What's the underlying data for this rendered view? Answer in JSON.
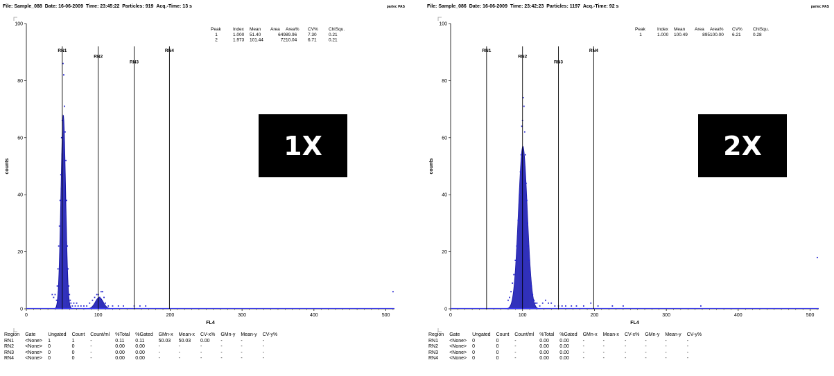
{
  "chart_data": [
    {
      "type": "histogram",
      "header": {
        "file": "File: Sample_088",
        "date": "Date: 16-06-2009",
        "time": "Time: 23:45:22",
        "particles": "Particles: 919",
        "acq_time": "Acq.-Time: 13 s",
        "brand": "partec PAS"
      },
      "badge": "1X",
      "xlabel": "FL4",
      "ylabel": "counts",
      "xlim": [
        0,
        512
      ],
      "ylim": [
        0,
        100
      ],
      "x_ticks": [
        0,
        100,
        200,
        300,
        400,
        500
      ],
      "y_ticks": [
        0,
        20,
        40,
        60,
        80,
        100
      ],
      "regions": [
        {
          "name": "RN1",
          "x": 50,
          "label_y": 90
        },
        {
          "name": "RN2",
          "x": 100,
          "label_y": 88
        },
        {
          "name": "RN3",
          "x": 150,
          "label_y": 86
        },
        {
          "name": "RN4",
          "x": 199,
          "label_y": 90
        }
      ],
      "peaks": [
        {
          "mean": 51.4,
          "height": 68,
          "sigma": 3.3
        },
        {
          "mean": 101.44,
          "height": 4,
          "sigma": 5.5
        }
      ],
      "scatter_points": [
        [
          36,
          5
        ],
        [
          38,
          4
        ],
        [
          40,
          5
        ],
        [
          42,
          3
        ],
        [
          43,
          8
        ],
        [
          44,
          14
        ],
        [
          45,
          22
        ],
        [
          46,
          29
        ],
        [
          47,
          38
        ],
        [
          48,
          47
        ],
        [
          49,
          60
        ],
        [
          50,
          66
        ],
        [
          51,
          86
        ],
        [
          52,
          82
        ],
        [
          53,
          71
        ],
        [
          54,
          62
        ],
        [
          55,
          52
        ],
        [
          56,
          38
        ],
        [
          57,
          22
        ],
        [
          58,
          14
        ],
        [
          59,
          8
        ],
        [
          60,
          5
        ],
        [
          61,
          3
        ],
        [
          62,
          2
        ],
        [
          64,
          1
        ],
        [
          66,
          2
        ],
        [
          68,
          1
        ],
        [
          70,
          2
        ],
        [
          72,
          1
        ],
        [
          76,
          1
        ],
        [
          80,
          1
        ],
        [
          84,
          1
        ],
        [
          88,
          2
        ],
        [
          92,
          3
        ],
        [
          95,
          4
        ],
        [
          98,
          5
        ],
        [
          100,
          5
        ],
        [
          102,
          4
        ],
        [
          104,
          6
        ],
        [
          106,
          6
        ],
        [
          108,
          4
        ],
        [
          110,
          2
        ],
        [
          114,
          1
        ],
        [
          120,
          1
        ],
        [
          128,
          1
        ],
        [
          135,
          1
        ],
        [
          150,
          1
        ],
        [
          158,
          1
        ],
        [
          166,
          1
        ],
        [
          510,
          6
        ]
      ],
      "stats_table": {
        "headers": [
          "Peak",
          "Index",
          "Mean",
          "Area",
          "Area%",
          "CV%",
          "ChiSqu."
        ],
        "rows": [
          [
            "1",
            "1.000",
            "51.40",
            "649",
            "89.96",
            "7.30",
            "0.21"
          ],
          [
            "2",
            "1.973",
            "101.44",
            "72",
            "10.04",
            "6.71",
            "0.21"
          ]
        ]
      },
      "region_table": {
        "headers": [
          "Region",
          "Gate",
          "Ungated",
          "Count",
          "Count/ml",
          "%Total",
          "%Gated",
          "GMn-x",
          "Mean-x",
          "CV-x%",
          "GMn-y",
          "Mean-y",
          "CV-y%"
        ],
        "rows": [
          [
            "RN1",
            "<None>",
            "1",
            "1",
            "-",
            "0.11",
            "0.11",
            "50.03",
            "50.03",
            "0.00",
            "-",
            "-",
            "-"
          ],
          [
            "RN2",
            "<None>",
            "0",
            "0",
            "-",
            "0.00",
            "0.00",
            "-",
            "-",
            "-",
            "-",
            "-",
            "-"
          ],
          [
            "RN3",
            "<None>",
            "0",
            "0",
            "-",
            "0.00",
            "0.00",
            "-",
            "-",
            "-",
            "-",
            "-",
            "-"
          ],
          [
            "RN4",
            "<None>",
            "0",
            "0",
            "-",
            "0.00",
            "0.00",
            "-",
            "-",
            "-",
            "-",
            "-",
            "-"
          ]
        ]
      }
    },
    {
      "type": "histogram",
      "header": {
        "file": "File: Sample_086",
        "date": "Date: 16-06-2009",
        "time": "Time: 23:42:23",
        "particles": "Particles: 1197",
        "acq_time": "Acq.-Time: 92 s",
        "brand": "partec PAS"
      },
      "badge": "2X",
      "xlabel": "FL4",
      "ylabel": "counts",
      "xlim": [
        0,
        512
      ],
      "ylim": [
        0,
        100
      ],
      "x_ticks": [
        0,
        100,
        200,
        300,
        400,
        500
      ],
      "y_ticks": [
        0,
        20,
        40,
        60,
        80,
        100
      ],
      "regions": [
        {
          "name": "RN1",
          "x": 50,
          "label_y": 90
        },
        {
          "name": "RN2",
          "x": 100,
          "label_y": 88
        },
        {
          "name": "RN3",
          "x": 150,
          "label_y": 86
        },
        {
          "name": "RN4",
          "x": 199,
          "label_y": 90
        }
      ],
      "peaks": [
        {
          "mean": 100.49,
          "height": 57,
          "sigma": 6.2
        }
      ],
      "scatter_points": [
        [
          80,
          3
        ],
        [
          82,
          4
        ],
        [
          84,
          6
        ],
        [
          86,
          9
        ],
        [
          88,
          12
        ],
        [
          90,
          17
        ],
        [
          92,
          22
        ],
        [
          94,
          31
        ],
        [
          96,
          40
        ],
        [
          97,
          48
        ],
        [
          98,
          54
        ],
        [
          99,
          64
        ],
        [
          100,
          66
        ],
        [
          101,
          74
        ],
        [
          102,
          71
        ],
        [
          103,
          62
        ],
        [
          104,
          54
        ],
        [
          105,
          44
        ],
        [
          106,
          38
        ],
        [
          107,
          30
        ],
        [
          108,
          22
        ],
        [
          109,
          17
        ],
        [
          110,
          13
        ],
        [
          112,
          8
        ],
        [
          114,
          5
        ],
        [
          116,
          3
        ],
        [
          118,
          2
        ],
        [
          120,
          2
        ],
        [
          124,
          1
        ],
        [
          128,
          2
        ],
        [
          132,
          3
        ],
        [
          136,
          2
        ],
        [
          140,
          2
        ],
        [
          145,
          1
        ],
        [
          150,
          1
        ],
        [
          155,
          1
        ],
        [
          160,
          1
        ],
        [
          168,
          1
        ],
        [
          175,
          1
        ],
        [
          185,
          1
        ],
        [
          195,
          2
        ],
        [
          205,
          1
        ],
        [
          225,
          1
        ],
        [
          240,
          1
        ],
        [
          348,
          1
        ],
        [
          510,
          18
        ]
      ],
      "stats_table": {
        "headers": [
          "Peak",
          "Index",
          "Mean",
          "Area",
          "Area%",
          "CV%",
          "ChiSqu."
        ],
        "rows": [
          [
            "1",
            "1.000",
            "100.49",
            "895",
            "100.00",
            "6.21",
            "0.28"
          ]
        ]
      },
      "region_table": {
        "headers": [
          "Region",
          "Gate",
          "Ungated",
          "Count",
          "Count/ml",
          "%Total",
          "%Gated",
          "GMn-x",
          "Mean-x",
          "CV-x%",
          "GMn-y",
          "Mean-y",
          "CV-y%"
        ],
        "rows": [
          [
            "RN1",
            "<None>",
            "0",
            "0",
            "-",
            "0.00",
            "0.00",
            "-",
            "-",
            "-",
            "-",
            "-",
            "-"
          ],
          [
            "RN2",
            "<None>",
            "0",
            "0",
            "-",
            "0.00",
            "0.00",
            "-",
            "-",
            "-",
            "-",
            "-",
            "-"
          ],
          [
            "RN3",
            "<None>",
            "0",
            "0",
            "-",
            "0.00",
            "0.00",
            "-",
            "-",
            "-",
            "-",
            "-",
            "-"
          ],
          [
            "RN4",
            "<None>",
            "0",
            "0",
            "-",
            "0.00",
            "0.00",
            "-",
            "-",
            "-",
            "-",
            "-",
            "-"
          ]
        ]
      }
    }
  ],
  "colors": {
    "fill": "#3333cc",
    "stroke": "#1a1aa6",
    "point": "#1f1fd0",
    "baseline": "#4040ff"
  }
}
